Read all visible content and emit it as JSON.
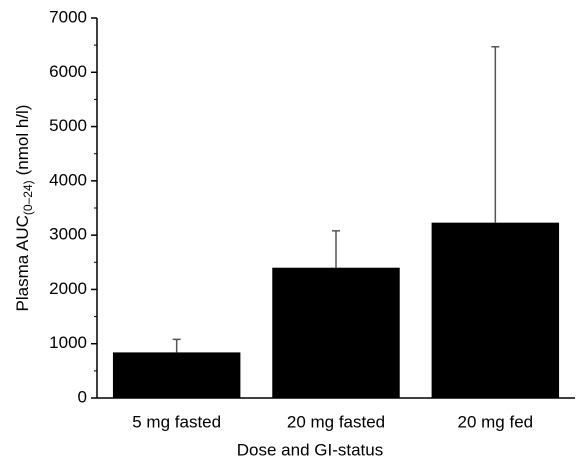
{
  "chart_data": {
    "type": "bar",
    "y_label": {
      "main": "Plasma AUC",
      "sub": "(0–24)",
      "unit": "(nmol h/l)"
    },
    "x_label": "Dose and GI-status",
    "categories": [
      "5 mg fasted",
      "20 mg fasted",
      "20 mg fed"
    ],
    "values": [
      840,
      2400,
      3230
    ],
    "errors": [
      240,
      680,
      3240
    ],
    "color": "#000000",
    "ylim": [
      0,
      7000
    ],
    "yticks": [
      0,
      1000,
      2000,
      3000,
      4000,
      5000,
      6000,
      7000
    ],
    "yminorticks": [
      500,
      1500,
      2500,
      3500,
      4500,
      5500,
      6500
    ]
  }
}
